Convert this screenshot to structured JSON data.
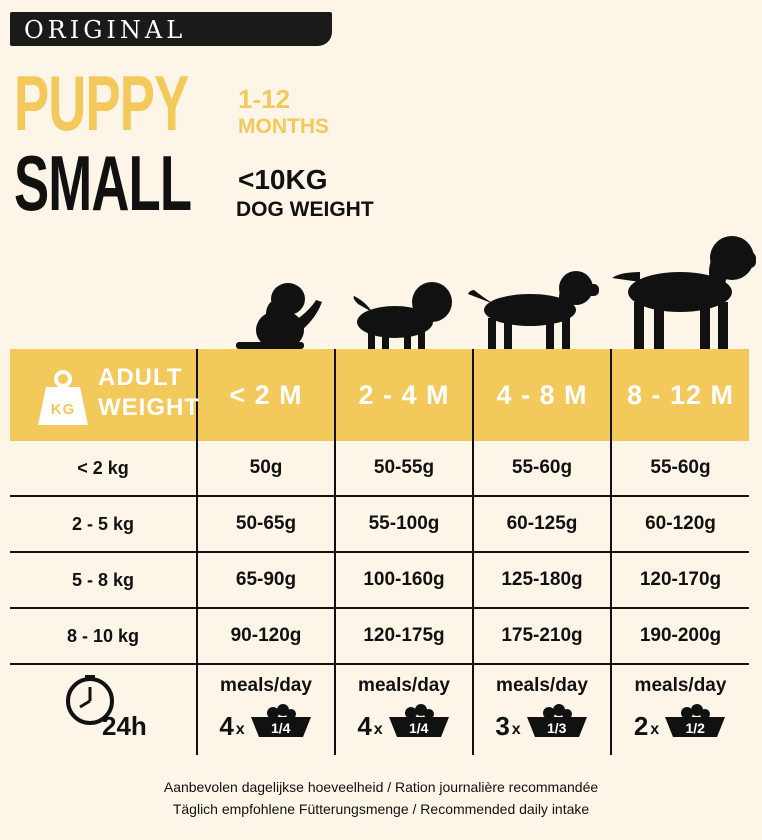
{
  "badge": "ORIGINAL",
  "title_line1": "PUPPY",
  "title_line2": "SMALL",
  "age_range": "1-12",
  "age_unit": "MONTHS",
  "weight_limit": "<10KG",
  "weight_label": "DOG WEIGHT",
  "table": {
    "header": {
      "adult_label_line1": "ADULT",
      "adult_label_line2": "WEIGHT",
      "kg_icon_text": "KG",
      "columns": [
        "< 2 M",
        "2 - 4 M",
        "4 - 8 M",
        "8 - 12 M"
      ]
    },
    "rows": [
      {
        "label": "< 2 kg",
        "values": [
          "50g",
          "50-55g",
          "55-60g",
          "55-60g"
        ]
      },
      {
        "label": "2 - 5 kg",
        "values": [
          "50-65g",
          "55-100g",
          "60-125g",
          "60-120g"
        ]
      },
      {
        "label": "5 - 8 kg",
        "values": [
          "65-90g",
          "100-160g",
          "125-180g",
          "120-170g"
        ]
      },
      {
        "label": "8 - 10 kg",
        "values": [
          "90-120g",
          "120-175g",
          "175-210g",
          "190-200g"
        ]
      }
    ],
    "meals": {
      "clock_label": "24h",
      "label": "meals/day",
      "x_sign": "x",
      "items": [
        {
          "count": "4",
          "portion": "1/4"
        },
        {
          "count": "4",
          "portion": "1/4"
        },
        {
          "count": "3",
          "portion": "1/3"
        },
        {
          "count": "2",
          "portion": "1/2"
        }
      ]
    }
  },
  "footer_line1": "Aanbevolen dagelijkse hoeveelheid / Ration journalière recommandée",
  "footer_line2": "Täglich empfohlene Fütterungsmenge / Recommended daily intake",
  "colors": {
    "accent_yellow": "#f4c95b",
    "dark": "#111111",
    "background": "#fdf6e8"
  }
}
